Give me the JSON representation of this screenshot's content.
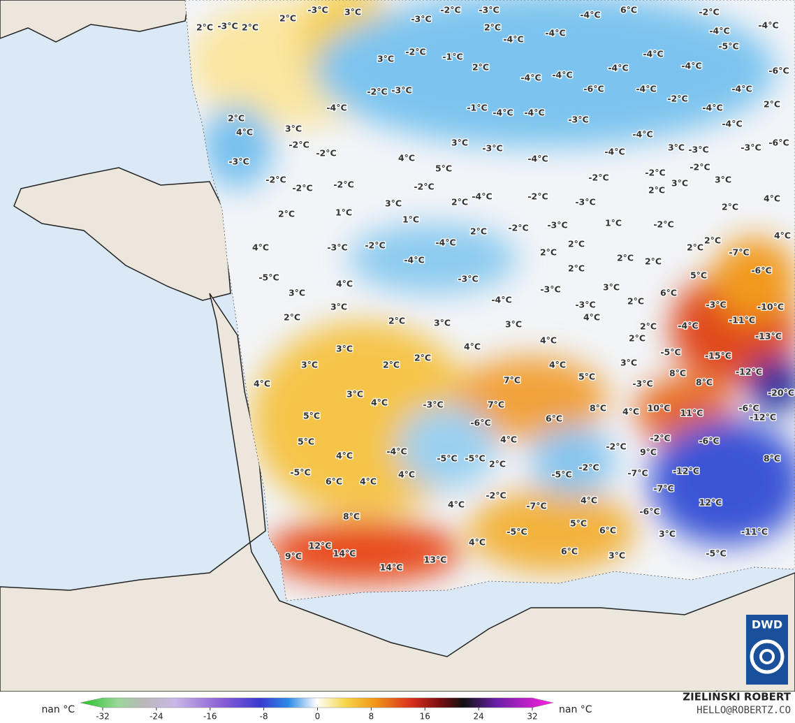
{
  "map": {
    "labels": [
      "-3°C",
      "3°C",
      "2°C",
      "-3°C",
      "2°C",
      "2°C",
      "-3°C",
      "-2°C",
      "-3°C",
      "-4°C",
      "6°C",
      "-2°C",
      "-4°C",
      "-4°C",
      "2°C",
      "-4°C",
      "-4°C",
      "-5°C",
      "3°C",
      "-2°C",
      "-1°C",
      "-4°C",
      "-4°C",
      "-6°C",
      "2°C",
      "-4°C",
      "-4°C",
      "-4°C",
      "-6°C",
      "-2°C",
      "-3°C",
      "-4°C",
      "-4°C",
      "-2°C",
      "-4°C",
      "-1°C",
      "-4°C",
      "-4°C",
      "2°C",
      "-4°C",
      "2°C",
      "-3°C",
      "-4°C",
      "3°C",
      "4°C",
      "-4°C",
      "-2°C",
      "-2°C",
      "3°C",
      "-3°C",
      "-4°C",
      "3°C",
      "-3°C",
      "-3°C",
      "-6°C",
      "-3°C",
      "4°C",
      "5°C",
      "-4°C",
      "-2°C",
      "-2°C",
      "-2°C",
      "-2°C",
      "-2°C",
      "-2°C",
      "-4°C",
      "-2°C",
      "2°C",
      "3°C",
      "3°C",
      "-2°C",
      "3°C",
      "2°C",
      "-3°C",
      "2°C",
      "4°C",
      "2°C",
      "1°C",
      "1°C",
      "2°C",
      "-2°C",
      "-3°C",
      "1°C",
      "-2°C",
      "4°C",
      "4°C",
      "-3°C",
      "-2°C",
      "-4°C",
      "2°C",
      "2°C",
      "2°C",
      "2°C",
      "-7°C",
      "-4°C",
      "2°C",
      "2°C",
      "2°C",
      "-6°C",
      "-5°C",
      "4°C",
      "-3°C",
      "-3°C",
      "3°C",
      "6°C",
      "5°C",
      "3°C",
      "3°C",
      "-4°C",
      "-3°C",
      "2°C",
      "-3°C",
      "-10°C",
      "2°C",
      "4°C",
      "2°C",
      "3°C",
      "3°C",
      "2°C",
      "-4°C",
      "-11°C",
      "-13°C",
      "3°C",
      "4°C",
      "4°C",
      "2°C",
      "-5°C",
      "-15°C",
      "3°C",
      "2°C",
      "2°C",
      "4°C",
      "3°C",
      "-12°C",
      "4°C",
      "7°C",
      "5°C",
      "-3°C",
      "8°C",
      "8°C",
      "-20°C",
      "3°C",
      "4°C",
      "-3°C",
      "7°C",
      "8°C",
      "4°C",
      "10°C",
      "11°C",
      "-6°C",
      "-12°C",
      "5°C",
      "6°C",
      "-6°C",
      "5°C",
      "4°C",
      "-2°C",
      "-2°C",
      "9°C",
      "-6°C",
      "4°C",
      "-4°C",
      "-5°C",
      "-5°C",
      "2°C",
      "-2°C",
      "8°C",
      "-12°C",
      "-5°C",
      "4°C",
      "-5°C",
      "-7°C",
      "6°C",
      "4°C",
      "-7°C",
      "-2°C",
      "4°C",
      "12°C",
      "-6°C",
      "4°C",
      "-7°C",
      "8°C",
      "-11°C",
      "5°C",
      "6°C",
      "3°C",
      "-5°C",
      "12°C",
      "14°C",
      "4°C",
      "9°C",
      "13°C",
      "6°C",
      "3°C",
      "-5°C",
      "14°C"
    ]
  },
  "colorbar": {
    "ticks": [
      -32,
      -24,
      -16,
      -8,
      0,
      8,
      16,
      24,
      32
    ],
    "left_label": "nan °C",
    "right_label": "nan °C"
  },
  "credit": {
    "author": "ZIELIŃSKI ROBERT",
    "contact": "HELLO@ROBERTZ.CO"
  },
  "logo": "DWD"
}
